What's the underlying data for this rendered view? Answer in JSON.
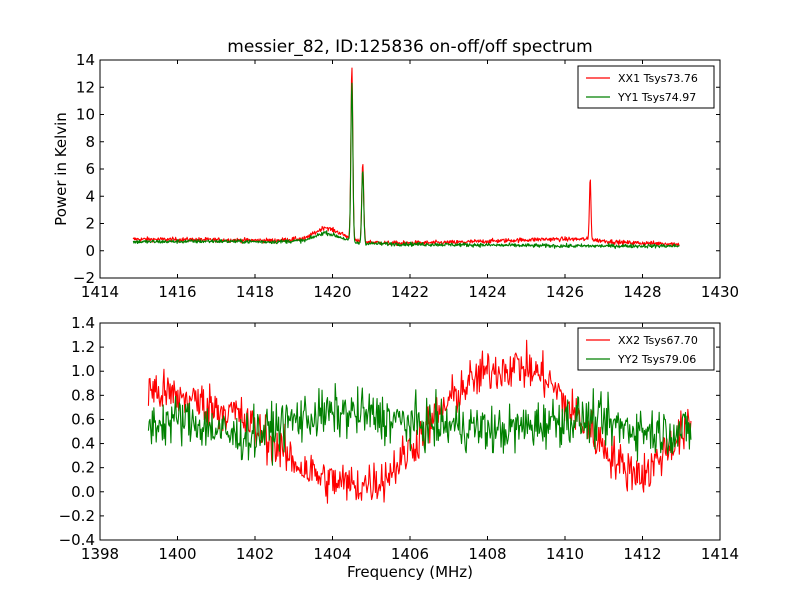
{
  "figure": {
    "title": "messier_82, ID:125836 on-off/off spectrum"
  },
  "chart_data": [
    {
      "type": "line",
      "title": "messier_82, ID:125836 on-off/off spectrum",
      "xlabel": "",
      "ylabel": "Power in Kelvin",
      "xlim": [
        1414,
        1430
      ],
      "ylim": [
        -2,
        14
      ],
      "xticks": [
        1414,
        1416,
        1418,
        1420,
        1422,
        1424,
        1426,
        1428,
        1430
      ],
      "yticks": [
        -2,
        0,
        2,
        4,
        6,
        8,
        10,
        12,
        14
      ],
      "grid": false,
      "legend": "top-right",
      "x_range": [
        1414.85,
        1428.95
      ],
      "series": [
        {
          "name": "XX1 Tsys73.76",
          "color": "#ff0000",
          "baseline": [
            [
              1414.85,
              0.85
            ],
            [
              1417,
              0.8
            ],
            [
              1418.5,
              0.75
            ],
            [
              1419.3,
              0.9
            ],
            [
              1419.8,
              1.75
            ],
            [
              1420.2,
              1.3
            ],
            [
              1420.6,
              0.7
            ],
            [
              1421.5,
              0.55
            ],
            [
              1423,
              0.6
            ],
            [
              1424.5,
              0.75
            ],
            [
              1425.5,
              0.85
            ],
            [
              1426.5,
              0.85
            ],
            [
              1427.5,
              0.6
            ],
            [
              1428.95,
              0.5
            ]
          ],
          "peaks": [
            [
              1420.5,
              12.6,
              0.025
            ],
            [
              1420.78,
              5.7,
              0.025
            ],
            [
              1426.65,
              4.5,
              0.02
            ]
          ],
          "noise": 0.08
        },
        {
          "name": "YY1 Tsys74.97",
          "color": "#008000",
          "baseline": [
            [
              1414.85,
              0.65
            ],
            [
              1417,
              0.7
            ],
            [
              1418.5,
              0.65
            ],
            [
              1419.3,
              0.75
            ],
            [
              1419.8,
              1.35
            ],
            [
              1420.2,
              1.0
            ],
            [
              1420.6,
              0.55
            ],
            [
              1421.5,
              0.5
            ],
            [
              1423,
              0.45
            ],
            [
              1424.5,
              0.4
            ],
            [
              1426,
              0.35
            ],
            [
              1427.5,
              0.35
            ],
            [
              1428.95,
              0.35
            ]
          ],
          "peaks": [
            [
              1420.5,
              11.7,
              0.025
            ],
            [
              1420.78,
              5.4,
              0.025
            ]
          ],
          "noise": 0.07
        }
      ]
    },
    {
      "type": "line",
      "title": "",
      "xlabel": "Frequency (MHz)",
      "ylabel": "",
      "xlim": [
        1398,
        1414
      ],
      "ylim": [
        -0.4,
        1.4
      ],
      "xticks": [
        1398,
        1400,
        1402,
        1404,
        1406,
        1408,
        1410,
        1412,
        1414
      ],
      "yticks": [
        -0.4,
        -0.2,
        0.0,
        0.2,
        0.4,
        0.6,
        0.8,
        1.0,
        1.2,
        1.4
      ],
      "grid": false,
      "legend": "top-right",
      "x_range": [
        1399.25,
        1413.25
      ],
      "series": [
        {
          "name": "XX2 Tsys67.70",
          "color": "#ff0000",
          "baseline": [
            [
              1399.25,
              0.85
            ],
            [
              1400.5,
              0.75
            ],
            [
              1401.5,
              0.65
            ],
            [
              1402.3,
              0.45
            ],
            [
              1403,
              0.25
            ],
            [
              1403.8,
              0.1
            ],
            [
              1404.6,
              0.05
            ],
            [
              1405.3,
              0.1
            ],
            [
              1406,
              0.35
            ],
            [
              1406.6,
              0.6
            ],
            [
              1407.3,
              0.85
            ],
            [
              1408,
              1.0
            ],
            [
              1408.8,
              1.05
            ],
            [
              1409.5,
              0.95
            ],
            [
              1410.1,
              0.7
            ],
            [
              1410.8,
              0.45
            ],
            [
              1411.5,
              0.2
            ],
            [
              1412.1,
              0.15
            ],
            [
              1412.6,
              0.35
            ],
            [
              1413.25,
              0.55
            ]
          ],
          "peaks": [],
          "noise": 0.09
        },
        {
          "name": "YY2 Tsys79.06",
          "color": "#008000",
          "baseline": [
            [
              1399.25,
              0.55
            ],
            [
              1400,
              0.6
            ],
            [
              1400.7,
              0.55
            ],
            [
              1401.5,
              0.45
            ],
            [
              1402.3,
              0.5
            ],
            [
              1403,
              0.6
            ],
            [
              1404,
              0.65
            ],
            [
              1404.7,
              0.65
            ],
            [
              1405.5,
              0.6
            ],
            [
              1406.3,
              0.55
            ],
            [
              1407.3,
              0.55
            ],
            [
              1408.3,
              0.5
            ],
            [
              1409.2,
              0.55
            ],
            [
              1409.8,
              0.6
            ],
            [
              1410.5,
              0.6
            ],
            [
              1411.3,
              0.55
            ],
            [
              1412.3,
              0.5
            ],
            [
              1413.25,
              0.5
            ]
          ],
          "peaks": [],
          "noise": 0.1
        }
      ]
    }
  ]
}
